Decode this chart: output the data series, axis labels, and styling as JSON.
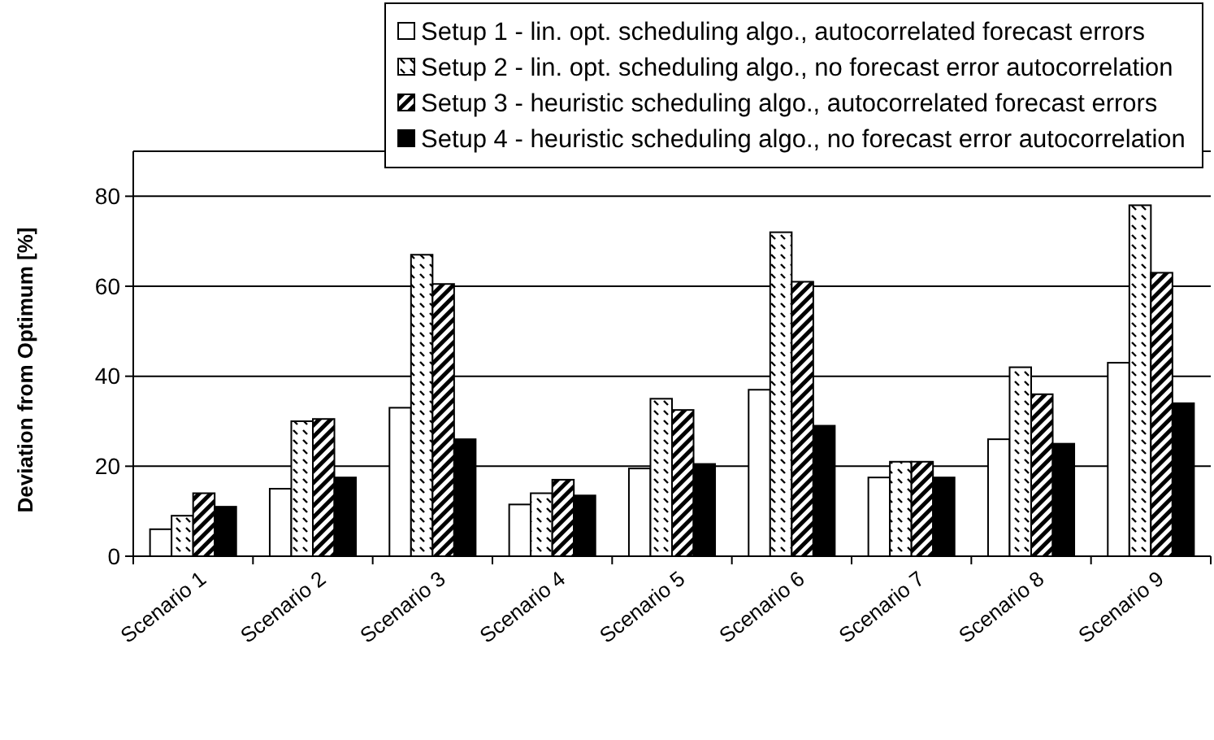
{
  "chart_data": {
    "type": "bar",
    "ylabel": "Deviation from Optimum [%]",
    "categories": [
      "Scenario 1",
      "Scenario 2",
      "Scenario 3",
      "Scenario 4",
      "Scenario 5",
      "Scenario 6",
      "Scenario 7",
      "Scenario 8",
      "Scenario 9"
    ],
    "series": [
      {
        "name": "Setup 1 - lin. opt. scheduling algo., autocorrelated forecast errors",
        "color": "#ffffff",
        "values": [
          6,
          15,
          33,
          11.5,
          19.5,
          37,
          17.5,
          26,
          43
        ]
      },
      {
        "name": "Setup 2 - lin. opt. scheduling algo., no forecast error autocorrelation",
        "color": "#000000",
        "values": [
          9,
          30,
          67,
          14,
          35,
          72,
          21,
          42,
          78
        ]
      },
      {
        "name": "Setup 3 - heuristic scheduling algo., autocorrelated forecast errors",
        "color": "#000000",
        "values": [
          14,
          30.5,
          60.5,
          17,
          32.5,
          61,
          21,
          36,
          63
        ]
      },
      {
        "name": "Setup 4 - heuristic scheduling algo., no forecast error autocorrelation",
        "color": "#000000",
        "values": [
          11,
          17.5,
          26,
          13.5,
          20.5,
          29,
          17.5,
          25,
          34
        ]
      }
    ],
    "ylim": [
      0,
      90
    ],
    "yticks": [
      0,
      20,
      40,
      60,
      80
    ],
    "grid": "y",
    "legend": "top right"
  }
}
